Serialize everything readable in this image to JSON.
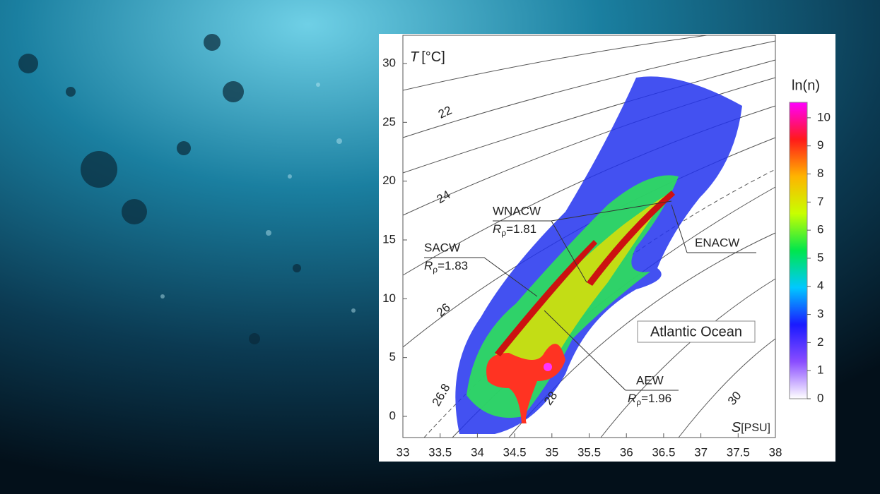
{
  "chart_data": {
    "type": "ts-diagram",
    "x_label": {
      "symbol": "S",
      "unit": "[PSU]"
    },
    "y_label": {
      "symbol": "T",
      "unit": "[°C]"
    },
    "xlim": [
      33,
      38
    ],
    "ylim": [
      -1.8,
      32.4
    ],
    "xticks": [
      33,
      33.5,
      34,
      34.5,
      35,
      35.5,
      36,
      36.5,
      37,
      37.5,
      38
    ],
    "yticks": [
      0,
      5,
      10,
      15,
      20,
      25,
      30
    ],
    "colorbar": {
      "title": "ln(n)",
      "lim": [
        0,
        10.55
      ],
      "ticks": [
        0,
        1,
        2,
        3,
        4,
        5,
        6,
        7,
        8,
        9,
        10
      ],
      "colormap": [
        "#ffffff",
        "#8a4dff",
        "#1a1aff",
        "#00c8ff",
        "#00e64d",
        "#c8ff00",
        "#ffb400",
        "#ff1a1a",
        "#ff00ff"
      ]
    },
    "isopycnal_labels": [
      22,
      24,
      26,
      26.8,
      28,
      30
    ],
    "annotations": [
      {
        "name": "WNACW",
        "symbol": "R",
        "subscript": "ρ",
        "text": "=1.81"
      },
      {
        "name": "SACW",
        "symbol": "R",
        "subscript": "ρ",
        "text": "=1.83"
      },
      {
        "name": "ENACW"
      },
      {
        "name": "AEW",
        "symbol": "R",
        "subscript": "ρ",
        "text": "=1.96"
      }
    ],
    "region_label": "Atlantic Ocean"
  }
}
